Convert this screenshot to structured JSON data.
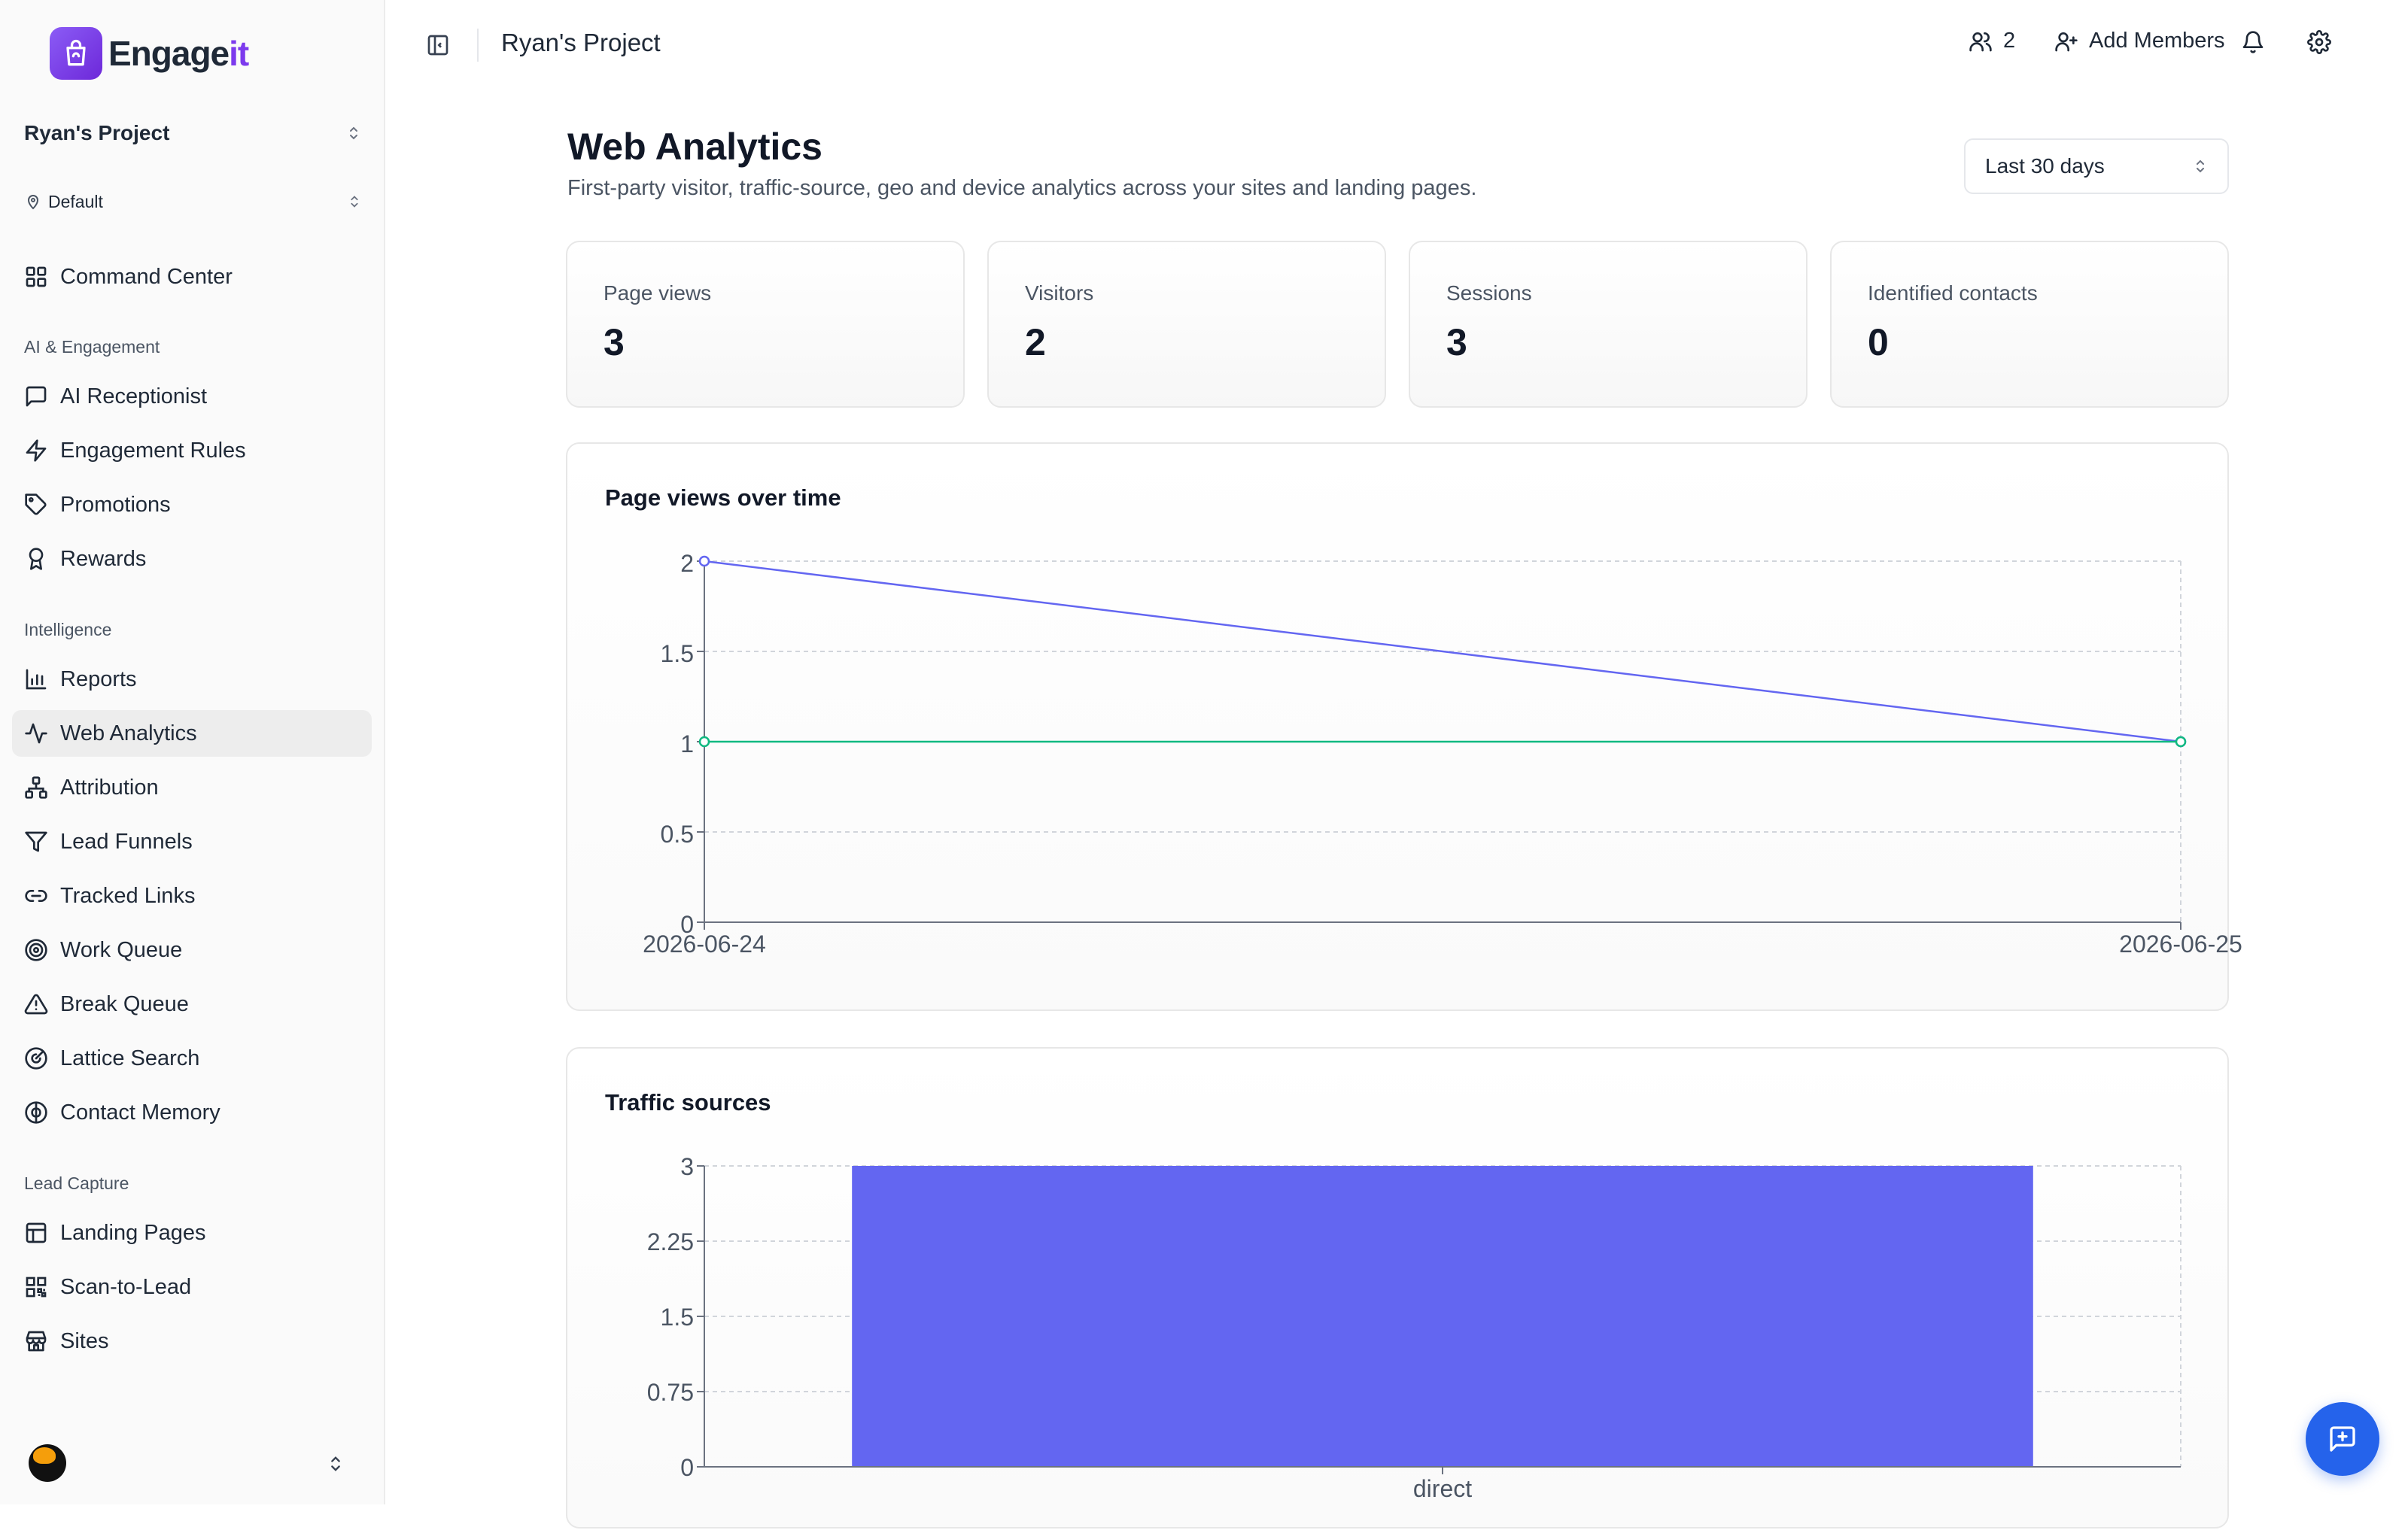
{
  "brand": {
    "name_main": "Engage",
    "name_accent": "it"
  },
  "sidebar": {
    "project": "Ryan's Project",
    "location": "Default",
    "command_center": "Command Center",
    "sections": {
      "ai": "AI & Engagement",
      "intelligence": "Intelligence",
      "lead_capture": "Lead Capture"
    },
    "ai_items": [
      "AI Receptionist",
      "Engagement Rules",
      "Promotions",
      "Rewards"
    ],
    "intel_items": [
      "Reports",
      "Web Analytics",
      "Attribution",
      "Lead Funnels",
      "Tracked Links",
      "Work Queue",
      "Break Queue",
      "Lattice Search",
      "Contact Memory"
    ],
    "lead_items": [
      "Landing Pages",
      "Scan-to-Lead",
      "Sites"
    ],
    "active_item": "Web Analytics"
  },
  "topbar": {
    "title": "Ryan's Project",
    "member_count": "2",
    "add_members": "Add Members"
  },
  "page": {
    "title": "Web Analytics",
    "subtitle": "First-party visitor, traffic-source, geo and device analytics across your sites and landing pages.",
    "range": "Last 30 days"
  },
  "stats": [
    {
      "label": "Page views",
      "value": "3"
    },
    {
      "label": "Visitors",
      "value": "2"
    },
    {
      "label": "Sessions",
      "value": "3"
    },
    {
      "label": "Identified contacts",
      "value": "0"
    }
  ],
  "colors": {
    "series1": "#6366f1",
    "series2": "#10b981",
    "bar": "#6366f1",
    "fab": "#2563eb"
  },
  "chart_data": [
    {
      "type": "line",
      "title": "Page views over time",
      "x": [
        "2026-06-24",
        "2026-06-25"
      ],
      "series": [
        {
          "values": [
            2,
            1
          ],
          "color": "#6366f1"
        },
        {
          "values": [
            1,
            1
          ],
          "color": "#10b981"
        }
      ],
      "yticks": [
        "0",
        "0.5",
        "1",
        "1.5",
        "2"
      ],
      "ylim": [
        0,
        2
      ],
      "grid": true
    },
    {
      "type": "bar",
      "title": "Traffic sources",
      "categories": [
        "direct"
      ],
      "values": [
        3
      ],
      "yticks": [
        "0",
        "0.75",
        "1.5",
        "2.25",
        "3"
      ],
      "ylim": [
        0,
        3
      ],
      "grid": true
    }
  ]
}
